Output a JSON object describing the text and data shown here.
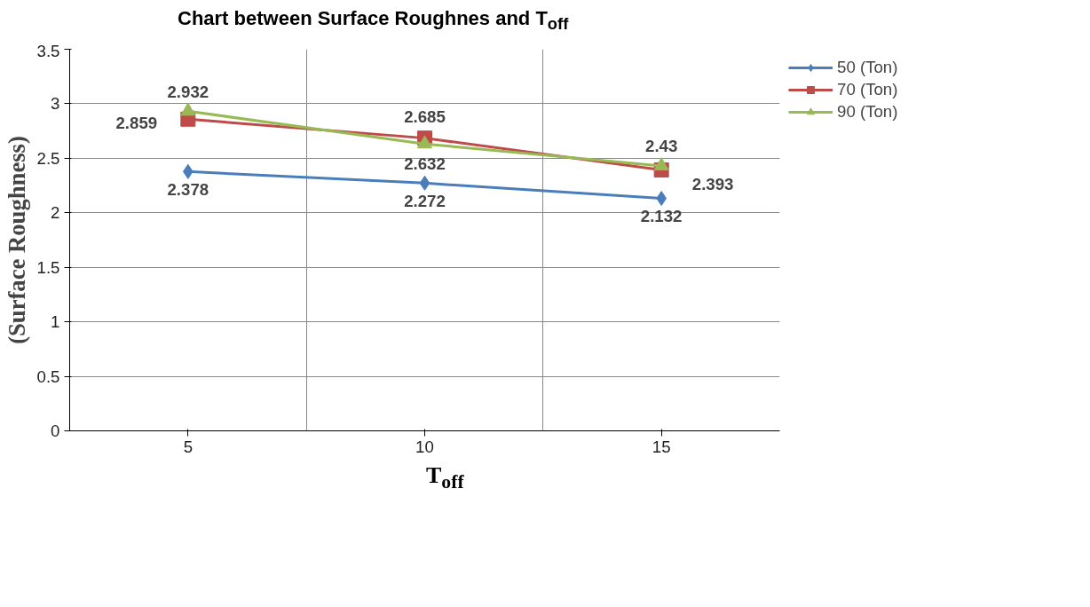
{
  "chart_data": {
    "type": "line",
    "title": "Chart between Surface Roughnes and T$_{off}$",
    "xlabel": "T$_{off}$",
    "ylabel": "(Surface Roughness)",
    "categories": [
      "5",
      "10",
      "15"
    ],
    "series": [
      {
        "name": "50 (Ton)",
        "color": "#4a7ebb",
        "marker": "diamond",
        "values": [
          2.378,
          2.272,
          2.132
        ]
      },
      {
        "name": "70 (Ton)",
        "color": "#be4b48",
        "marker": "square",
        "values": [
          2.859,
          2.685,
          2.393
        ]
      },
      {
        "name": "90 (Ton)",
        "color": "#98b954",
        "marker": "triangle",
        "values": [
          2.932,
          2.632,
          2.43
        ]
      }
    ],
    "ylim": [
      0,
      3.5
    ],
    "yticks": [
      0,
      0.5,
      1,
      1.5,
      2,
      2.5,
      3,
      3.5
    ],
    "grid": true,
    "legend": "top right",
    "data_labels": true
  }
}
